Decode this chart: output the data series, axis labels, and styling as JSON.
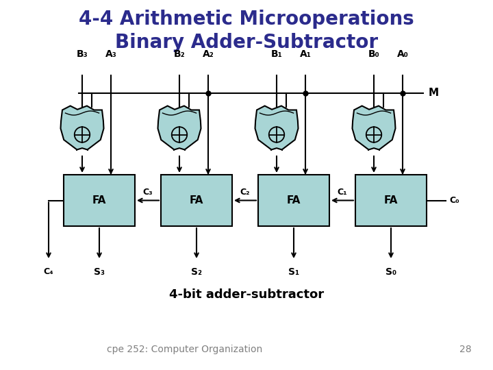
{
  "title_line1": "4-4 Arithmetic Microoperations",
  "title_line2": "Binary Adder-Subtractor",
  "title_color": "#2B2B8C",
  "title_fontsize": 20,
  "bg_color": "#FFFFFF",
  "gate_fill": "#A8D5D5",
  "gate_edge": "#000000",
  "fa_fill": "#A8D5D5",
  "fa_edge": "#000000",
  "b_labels": [
    "B₃",
    "B₂",
    "B₁",
    "B₀"
  ],
  "a_labels": [
    "A₃",
    "A₂",
    "A₁",
    "A₀"
  ],
  "s_labels": [
    "S₃",
    "S₂",
    "S₁",
    "S₀"
  ],
  "c_labels_between": [
    "C₃",
    "C₂",
    "C₁"
  ],
  "c4_label": "C₄",
  "c0_label": "C₀",
  "m_label": "M",
  "fa_labels": [
    "FA",
    "FA",
    "FA",
    "FA"
  ],
  "subtitle": "4-bit adder-subtractor",
  "footer": "cpe 252: Computer Organization",
  "page_num": "28",
  "subtitle_fontsize": 13,
  "footer_fontsize": 10,
  "label_fontsize": 11
}
